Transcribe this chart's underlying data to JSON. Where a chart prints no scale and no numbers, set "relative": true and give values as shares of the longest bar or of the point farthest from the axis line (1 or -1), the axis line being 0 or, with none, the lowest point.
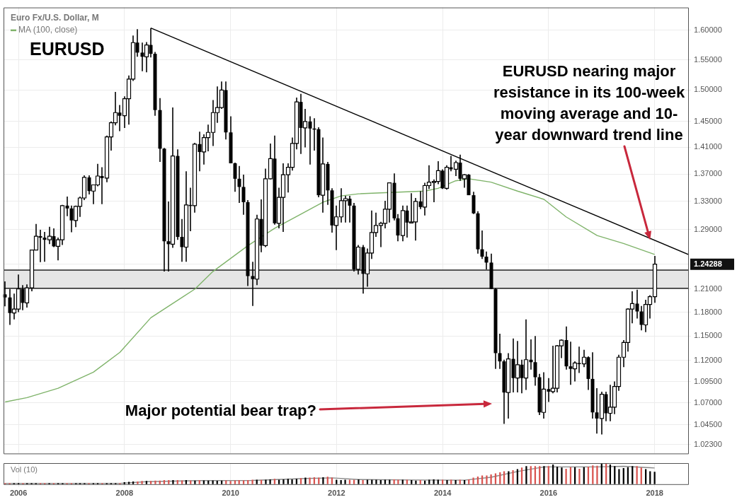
{
  "chart_data": [
    {
      "type": "candlestick",
      "title": "Euro Fx/U.S. Dollar, M",
      "log": true,
      "grid": true,
      "legend": "top left",
      "tick_labels": "y",
      "xlim": [
        "2005-09-20",
        "2018-08-20"
      ],
      "xticks": [
        "2006",
        "2008",
        "2010",
        "2012",
        "2014",
        "2016",
        "2018"
      ],
      "ylim": [
        1.013,
        1.64
      ],
      "yticks": [
        {
          "value": 1.023,
          "label": "1.02300"
        },
        {
          "value": 1.045,
          "label": "1.04500"
        },
        {
          "value": 1.07,
          "label": "1.07000"
        },
        {
          "value": 1.095,
          "label": "1.09500"
        },
        {
          "value": 1.12,
          "label": "1.12000"
        },
        {
          "value": 1.15,
          "label": "1.15000"
        },
        {
          "value": 1.18,
          "label": "1.18000"
        },
        {
          "value": 1.21,
          "label": "1.21000"
        },
        {
          "value": 1.24288,
          "label": "1.24288"
        },
        {
          "value": 1.29,
          "label": "1.29000"
        },
        {
          "value": 1.33,
          "label": "1.33000"
        },
        {
          "value": 1.37,
          "label": "1.37000"
        },
        {
          "value": 1.41,
          "label": "1.41000"
        },
        {
          "value": 1.45,
          "label": "1.45000"
        },
        {
          "value": 1.5,
          "label": "1.50000"
        },
        {
          "value": 1.55,
          "label": "1.55000"
        },
        {
          "value": 1.6,
          "label": "1.60000"
        }
      ],
      "x": [
        "2005-10",
        "2005-11",
        "2005-12",
        "2006-01",
        "2006-02",
        "2006-03",
        "2006-04",
        "2006-05",
        "2006-06",
        "2006-07",
        "2006-08",
        "2006-09",
        "2006-10",
        "2006-11",
        "2006-12",
        "2007-01",
        "2007-02",
        "2007-03",
        "2007-04",
        "2007-05",
        "2007-06",
        "2007-07",
        "2007-08",
        "2007-09",
        "2007-10",
        "2007-11",
        "2007-12",
        "2008-01",
        "2008-02",
        "2008-03",
        "2008-04",
        "2008-05",
        "2008-06",
        "2008-07",
        "2008-08",
        "2008-09",
        "2008-10",
        "2008-11",
        "2008-12",
        "2009-01",
        "2009-02",
        "2009-03",
        "2009-04",
        "2009-05",
        "2009-06",
        "2009-07",
        "2009-08",
        "2009-09",
        "2009-10",
        "2009-11",
        "2009-12",
        "2010-01",
        "2010-02",
        "2010-03",
        "2010-04",
        "2010-05",
        "2010-06",
        "2010-07",
        "2010-08",
        "2010-09",
        "2010-10",
        "2010-11",
        "2010-12",
        "2011-01",
        "2011-02",
        "2011-03",
        "2011-04",
        "2011-05",
        "2011-06",
        "2011-07",
        "2011-08",
        "2011-09",
        "2011-10",
        "2011-11",
        "2011-12",
        "2012-01",
        "2012-02",
        "2012-03",
        "2012-04",
        "2012-05",
        "2012-06",
        "2012-07",
        "2012-08",
        "2012-09",
        "2012-10",
        "2012-11",
        "2012-12",
        "2013-01",
        "2013-02",
        "2013-03",
        "2013-04",
        "2013-05",
        "2013-06",
        "2013-07",
        "2013-08",
        "2013-09",
        "2013-10",
        "2013-11",
        "2013-12",
        "2014-01",
        "2014-02",
        "2014-03",
        "2014-04",
        "2014-05",
        "2014-06",
        "2014-07",
        "2014-08",
        "2014-09",
        "2014-10",
        "2014-11",
        "2014-12",
        "2015-01",
        "2015-02",
        "2015-03",
        "2015-04",
        "2015-05",
        "2015-06",
        "2015-07",
        "2015-08",
        "2015-09",
        "2015-10",
        "2015-11",
        "2015-12",
        "2016-01",
        "2016-02",
        "2016-03",
        "2016-04",
        "2016-05",
        "2016-06",
        "2016-07",
        "2016-08",
        "2016-09",
        "2016-10",
        "2016-11",
        "2016-12",
        "2017-01",
        "2017-02",
        "2017-03",
        "2017-04",
        "2017-05",
        "2017-06",
        "2017-07",
        "2017-08",
        "2017-09",
        "2017-10",
        "2017-11",
        "2017-12",
        "2018-01"
      ],
      "ohlc": [
        [
          1.203,
          1.22,
          1.1875,
          1.199
        ],
        [
          1.199,
          1.21,
          1.164,
          1.179
        ],
        [
          1.179,
          1.204,
          1.171,
          1.184
        ],
        [
          1.184,
          1.229,
          1.18,
          1.21
        ],
        [
          1.21,
          1.215,
          1.1825,
          1.192
        ],
        [
          1.192,
          1.216,
          1.186,
          1.2115
        ],
        [
          1.2115,
          1.2625,
          1.207,
          1.262
        ],
        [
          1.262,
          1.298,
          1.262,
          1.281
        ],
        [
          1.281,
          1.29,
          1.2455,
          1.279
        ],
        [
          1.279,
          1.287,
          1.246,
          1.276
        ],
        [
          1.276,
          1.294,
          1.27,
          1.281
        ],
        [
          1.281,
          1.292,
          1.266,
          1.267
        ],
        [
          1.267,
          1.279,
          1.248,
          1.276
        ],
        [
          1.276,
          1.325,
          1.269,
          1.324
        ],
        [
          1.324,
          1.337,
          1.309,
          1.32
        ],
        [
          1.32,
          1.324,
          1.2865,
          1.303
        ],
        [
          1.303,
          1.324,
          1.2935,
          1.323
        ],
        [
          1.323,
          1.337,
          1.308,
          1.335
        ],
        [
          1.335,
          1.368,
          1.332,
          1.365
        ],
        [
          1.365,
          1.368,
          1.34,
          1.345
        ],
        [
          1.345,
          1.354,
          1.326,
          1.354
        ],
        [
          1.354,
          1.385,
          1.352,
          1.367
        ],
        [
          1.367,
          1.38,
          1.326,
          1.364
        ],
        [
          1.364,
          1.428,
          1.358,
          1.426
        ],
        [
          1.426,
          1.45,
          1.405,
          1.448
        ],
        [
          1.448,
          1.497,
          1.444,
          1.464
        ],
        [
          1.464,
          1.476,
          1.435,
          1.459
        ],
        [
          1.459,
          1.49,
          1.44,
          1.486
        ],
        [
          1.486,
          1.524,
          1.445,
          1.518
        ],
        [
          1.518,
          1.591,
          1.515,
          1.579
        ],
        [
          1.579,
          1.602,
          1.555,
          1.562
        ],
        [
          1.562,
          1.579,
          1.531,
          1.555
        ],
        [
          1.555,
          1.58,
          1.529,
          1.575
        ],
        [
          1.575,
          1.604,
          1.554,
          1.56
        ],
        [
          1.56,
          1.563,
          1.459,
          1.468
        ],
        [
          1.468,
          1.487,
          1.388,
          1.408
        ],
        [
          1.408,
          1.409,
          1.233,
          1.274
        ],
        [
          1.274,
          1.33,
          1.233,
          1.27
        ],
        [
          1.27,
          1.472,
          1.265,
          1.397
        ],
        [
          1.397,
          1.407,
          1.276,
          1.28
        ],
        [
          1.28,
          1.305,
          1.246,
          1.266
        ],
        [
          1.266,
          1.374,
          1.246,
          1.325
        ],
        [
          1.325,
          1.35,
          1.288,
          1.324
        ],
        [
          1.324,
          1.417,
          1.314,
          1.415
        ],
        [
          1.415,
          1.434,
          1.374,
          1.403
        ],
        [
          1.403,
          1.43,
          1.384,
          1.425
        ],
        [
          1.425,
          1.445,
          1.404,
          1.433
        ],
        [
          1.433,
          1.484,
          1.412,
          1.464
        ],
        [
          1.464,
          1.506,
          1.448,
          1.472
        ],
        [
          1.472,
          1.514,
          1.47,
          1.5
        ],
        [
          1.5,
          1.514,
          1.422,
          1.433
        ],
        [
          1.433,
          1.458,
          1.386,
          1.386
        ],
        [
          1.386,
          1.387,
          1.344,
          1.363
        ],
        [
          1.363,
          1.382,
          1.328,
          1.351
        ],
        [
          1.351,
          1.369,
          1.311,
          1.329
        ],
        [
          1.329,
          1.332,
          1.214,
          1.227
        ],
        [
          1.227,
          1.246,
          1.188,
          1.223
        ],
        [
          1.223,
          1.311,
          1.215,
          1.305
        ],
        [
          1.305,
          1.333,
          1.259,
          1.268
        ],
        [
          1.268,
          1.378,
          1.266,
          1.363
        ],
        [
          1.363,
          1.416,
          1.362,
          1.393
        ],
        [
          1.393,
          1.428,
          1.297,
          1.299
        ],
        [
          1.299,
          1.35,
          1.292,
          1.336
        ],
        [
          1.336,
          1.386,
          1.287,
          1.369
        ],
        [
          1.369,
          1.386,
          1.343,
          1.38
        ],
        [
          1.38,
          1.425,
          1.375,
          1.416
        ],
        [
          1.416,
          1.488,
          1.407,
          1.481
        ],
        [
          1.481,
          1.494,
          1.4,
          1.44
        ],
        [
          1.44,
          1.47,
          1.41,
          1.45
        ],
        [
          1.45,
          1.458,
          1.384,
          1.439
        ],
        [
          1.439,
          1.455,
          1.405,
          1.438
        ],
        [
          1.438,
          1.441,
          1.336,
          1.339
        ],
        [
          1.339,
          1.425,
          1.314,
          1.385
        ],
        [
          1.385,
          1.388,
          1.325,
          1.346
        ],
        [
          1.346,
          1.349,
          1.286,
          1.296
        ],
        [
          1.296,
          1.324,
          1.262,
          1.308
        ],
        [
          1.308,
          1.349,
          1.3,
          1.331
        ],
        [
          1.331,
          1.338,
          1.3,
          1.334
        ],
        [
          1.334,
          1.338,
          1.3,
          1.324
        ],
        [
          1.324,
          1.328,
          1.233,
          1.236
        ],
        [
          1.236,
          1.269,
          1.229,
          1.266
        ],
        [
          1.266,
          1.269,
          1.204,
          1.23
        ],
        [
          1.23,
          1.264,
          1.213,
          1.258
        ],
        [
          1.258,
          1.317,
          1.25,
          1.286
        ],
        [
          1.286,
          1.314,
          1.28,
          1.296
        ],
        [
          1.296,
          1.301,
          1.266,
          1.299
        ],
        [
          1.299,
          1.331,
          1.292,
          1.319
        ],
        [
          1.319,
          1.357,
          1.3,
          1.357
        ],
        [
          1.357,
          1.371,
          1.303,
          1.306
        ],
        [
          1.306,
          1.312,
          1.274,
          1.282
        ],
        [
          1.282,
          1.324,
          1.274,
          1.317
        ],
        [
          1.317,
          1.324,
          1.279,
          1.3
        ],
        [
          1.3,
          1.342,
          1.3,
          1.301
        ],
        [
          1.301,
          1.335,
          1.275,
          1.33
        ],
        [
          1.33,
          1.345,
          1.319,
          1.322
        ],
        [
          1.322,
          1.357,
          1.31,
          1.353
        ],
        [
          1.353,
          1.383,
          1.348,
          1.358
        ],
        [
          1.358,
          1.362,
          1.329,
          1.359
        ],
        [
          1.359,
          1.389,
          1.355,
          1.375
        ],
        [
          1.375,
          1.377,
          1.348,
          1.349
        ],
        [
          1.349,
          1.383,
          1.347,
          1.38
        ],
        [
          1.38,
          1.397,
          1.374,
          1.377
        ],
        [
          1.377,
          1.39,
          1.367,
          1.387
        ],
        [
          1.387,
          1.399,
          1.36,
          1.363
        ],
        [
          1.363,
          1.37,
          1.35,
          1.369
        ],
        [
          1.369,
          1.37,
          1.339,
          1.339
        ],
        [
          1.339,
          1.344,
          1.312,
          1.313
        ],
        [
          1.313,
          1.316,
          1.257,
          1.263
        ],
        [
          1.263,
          1.289,
          1.25,
          1.253
        ],
        [
          1.253,
          1.26,
          1.236,
          1.245
        ],
        [
          1.245,
          1.257,
          1.21,
          1.21
        ],
        [
          1.21,
          1.211,
          1.11,
          1.129
        ],
        [
          1.129,
          1.153,
          1.11,
          1.119
        ],
        [
          1.119,
          1.121,
          1.046,
          1.082
        ],
        [
          1.082,
          1.129,
          1.052,
          1.122
        ],
        [
          1.122,
          1.147,
          1.082,
          1.099
        ],
        [
          1.099,
          1.144,
          1.082,
          1.115
        ],
        [
          1.115,
          1.121,
          1.081,
          1.099
        ],
        [
          1.099,
          1.171,
          1.085,
          1.121
        ],
        [
          1.121,
          1.146,
          1.109,
          1.118
        ],
        [
          1.118,
          1.15,
          1.09,
          1.1
        ],
        [
          1.1,
          1.104,
          1.056,
          1.059
        ],
        [
          1.059,
          1.106,
          1.052,
          1.086
        ],
        [
          1.086,
          1.099,
          1.071,
          1.083
        ],
        [
          1.083,
          1.138,
          1.081,
          1.087
        ],
        [
          1.087,
          1.139,
          1.082,
          1.138
        ],
        [
          1.138,
          1.146,
          1.123,
          1.145
        ],
        [
          1.145,
          1.162,
          1.109,
          1.113
        ],
        [
          1.113,
          1.143,
          1.091,
          1.11
        ],
        [
          1.11,
          1.119,
          1.095,
          1.117
        ],
        [
          1.117,
          1.137,
          1.105,
          1.116
        ],
        [
          1.116,
          1.133,
          1.112,
          1.124
        ],
        [
          1.124,
          1.125,
          1.085,
          1.098
        ],
        [
          1.098,
          1.13,
          1.052,
          1.059
        ],
        [
          1.059,
          1.087,
          1.035,
          1.052
        ],
        [
          1.052,
          1.083,
          1.034,
          1.08
        ],
        [
          1.08,
          1.083,
          1.049,
          1.058
        ],
        [
          1.058,
          1.091,
          1.049,
          1.065
        ],
        [
          1.065,
          1.095,
          1.057,
          1.089
        ],
        [
          1.089,
          1.127,
          1.084,
          1.124
        ],
        [
          1.124,
          1.145,
          1.112,
          1.142
        ],
        [
          1.142,
          1.185,
          1.131,
          1.184
        ],
        [
          1.184,
          1.207,
          1.166,
          1.191
        ],
        [
          1.191,
          1.209,
          1.172,
          1.181
        ],
        [
          1.181,
          1.188,
          1.157,
          1.164
        ],
        [
          1.164,
          1.196,
          1.155,
          1.19
        ],
        [
          1.19,
          1.202,
          1.172,
          1.2
        ],
        [
          1.2,
          1.254,
          1.192,
          1.24288
        ]
      ],
      "series": [
        {
          "type": "line",
          "name": "MA (100, close)",
          "color": "#7fb36a",
          "x": [
            "2005-10",
            "2006-03",
            "2006-10",
            "2007-06",
            "2007-12",
            "2008-07",
            "2009-02",
            "2009-05",
            "2009-09",
            "2010-05",
            "2010-11",
            "2011-05",
            "2011-10",
            "2012-02",
            "2012-06",
            "2013-01",
            "2013-09",
            "2013-12",
            "2014-04",
            "2014-07",
            "2014-12",
            "2015-06",
            "2015-12",
            "2016-05",
            "2016-12",
            "2017-06",
            "2018-01"
          ],
          "values": [
            1.071,
            1.076,
            1.087,
            1.106,
            1.13,
            1.173,
            1.199,
            1.21,
            1.233,
            1.268,
            1.292,
            1.312,
            1.329,
            1.338,
            1.341,
            1.343,
            1.345,
            1.349,
            1.36,
            1.363,
            1.358,
            1.345,
            1.333,
            1.308,
            1.282,
            1.271,
            1.256
          ]
        },
        {
          "type": "line",
          "color": "#000000",
          "x": [
            "2008-07",
            "2018-08-20"
          ],
          "values": [
            1.604,
            1.256
          ]
        }
      ],
      "bands": [
        {
          "axis": "y",
          "from": 1.211,
          "to": 1.235,
          "color": "#e6e6e6"
        }
      ],
      "ref_lines": [
        {
          "axis": "y",
          "value": 1.235,
          "color": "#222222"
        },
        {
          "axis": "y",
          "value": 1.211,
          "color": "#222222"
        }
      ],
      "annotations": [
        "EURUSD",
        {
          "text": "EURUSD nearing major resistance in its 100-week moving average and 10-year downward trend line",
          "x": "2017-12",
          "y": 1.278
        },
        "Major potential bear trap?"
      ]
    },
    {
      "type": "bar",
      "title": "Vol (10)",
      "relative": true,
      "grid": "x",
      "xlim": [
        "2005-09-20",
        "2018-08-20"
      ],
      "xticks": [
        "2006",
        "2008",
        "2010",
        "2012",
        "2014",
        "2016",
        "2018"
      ],
      "x": [
        "2005-10",
        "2005-11",
        "2005-12",
        "2006-01",
        "2006-02",
        "2006-03",
        "2006-04",
        "2006-05",
        "2006-06",
        "2006-07",
        "2006-08",
        "2006-09",
        "2006-10",
        "2006-11",
        "2006-12",
        "2007-01",
        "2007-02",
        "2007-03",
        "2007-04",
        "2007-05",
        "2007-06",
        "2007-07",
        "2007-08",
        "2007-09",
        "2007-10",
        "2007-11",
        "2007-12",
        "2008-01",
        "2008-02",
        "2008-03",
        "2008-04",
        "2008-05",
        "2008-06",
        "2008-07",
        "2008-08",
        "2008-09",
        "2008-10",
        "2008-11",
        "2008-12",
        "2009-01",
        "2009-02",
        "2009-03",
        "2009-04",
        "2009-05",
        "2009-06",
        "2009-07",
        "2009-08",
        "2009-09",
        "2009-10",
        "2009-11",
        "2009-12",
        "2010-01",
        "2010-02",
        "2010-03",
        "2010-04",
        "2010-05",
        "2010-06",
        "2010-07",
        "2010-08",
        "2010-09",
        "2010-10",
        "2010-11",
        "2010-12",
        "2011-01",
        "2011-02",
        "2011-03",
        "2011-04",
        "2011-05",
        "2011-06",
        "2011-07",
        "2011-08",
        "2011-09",
        "2011-10",
        "2011-11",
        "2011-12",
        "2012-01",
        "2012-02",
        "2012-03",
        "2012-04",
        "2012-05",
        "2012-06",
        "2012-07",
        "2012-08",
        "2012-09",
        "2012-10",
        "2012-11",
        "2012-12",
        "2013-01",
        "2013-02",
        "2013-03",
        "2013-04",
        "2013-05",
        "2013-06",
        "2013-07",
        "2013-08",
        "2013-09",
        "2013-10",
        "2013-11",
        "2013-12",
        "2014-01",
        "2014-02",
        "2014-03",
        "2014-04",
        "2014-05",
        "2014-06",
        "2014-07",
        "2014-08",
        "2014-09",
        "2014-10",
        "2014-11",
        "2014-12",
        "2015-01",
        "2015-02",
        "2015-03",
        "2015-04",
        "2015-05",
        "2015-06",
        "2015-07",
        "2015-08",
        "2015-09",
        "2015-10",
        "2015-11",
        "2015-12",
        "2016-01",
        "2016-02",
        "2016-03",
        "2016-04",
        "2016-05",
        "2016-06",
        "2016-07",
        "2016-08",
        "2016-09",
        "2016-10",
        "2016-11",
        "2016-12",
        "2017-01",
        "2017-02",
        "2017-03",
        "2017-04",
        "2017-05",
        "2017-06",
        "2017-07",
        "2017-08",
        "2017-09",
        "2017-10",
        "2017-11",
        "2017-12",
        "2018-01"
      ],
      "series": [
        {
          "type": "bar",
          "values": [
            0.04,
            0.04,
            0.04,
            0.04,
            0.04,
            0.04,
            0.04,
            0.04,
            0.04,
            0.04,
            0.04,
            0.04,
            0.04,
            0.04,
            0.04,
            0.04,
            0.04,
            0.04,
            0.04,
            0.04,
            0.04,
            0.04,
            0.04,
            0.04,
            0.04,
            0.04,
            0.04,
            0.08,
            0.1,
            0.12,
            0.12,
            0.14,
            0.14,
            0.14,
            0.16,
            0.16,
            0.18,
            0.18,
            0.18,
            0.18,
            0.17,
            0.18,
            0.17,
            0.16,
            0.18,
            0.17,
            0.16,
            0.17,
            0.15,
            0.16,
            0.17,
            0.14,
            0.17,
            0.18,
            0.17,
            0.18,
            0.2,
            0.2,
            0.19,
            0.2,
            0.22,
            0.24,
            0.2,
            0.22,
            0.24,
            0.22,
            0.24,
            0.28,
            0.3,
            0.3,
            0.32,
            0.3,
            0.32,
            0.34,
            0.3,
            0.2,
            0.18,
            0.2,
            0.2,
            0.2,
            0.22,
            0.18,
            0.2,
            0.2,
            0.2,
            0.18,
            0.2,
            0.2,
            0.22,
            0.2,
            0.2,
            0.2,
            0.18,
            0.16,
            0.18,
            0.16,
            0.2,
            0.22,
            0.2,
            0.2,
            0.18,
            0.2,
            0.18,
            0.2,
            0.18,
            0.22,
            0.3,
            0.35,
            0.4,
            0.4,
            0.45,
            0.5,
            0.55,
            0.6,
            0.6,
            0.65,
            0.7,
            0.78,
            0.85,
            0.85,
            0.85,
            0.85,
            0.85,
            0.85,
            0.92,
            0.82,
            0.78,
            0.72,
            0.8,
            0.8,
            0.72,
            0.8,
            0.82,
            0.88,
            0.86,
            1,
            0.96,
            0.92,
            0.85,
            0.7,
            0.75,
            0.8,
            0.85,
            0.85,
            0.78,
            0.7,
            0.6,
            0.58
          ],
          "colors": [
            "#d9534f",
            "#d9534f",
            "#000000",
            "#000000",
            "#d9534f",
            "#000000",
            "#000000",
            "#000000",
            "#d9534f",
            "#d9534f",
            "#000000",
            "#d9534f",
            "#000000",
            "#000000",
            "#d9534f",
            "#d9534f",
            "#000000",
            "#000000",
            "#000000",
            "#d9534f",
            "#000000",
            "#000000",
            "#d9534f",
            "#000000",
            "#000000",
            "#000000",
            "#d9534f",
            "#000000",
            "#000000",
            "#000000",
            "#d9534f",
            "#d9534f",
            "#000000",
            "#d9534f",
            "#d9534f",
            "#d9534f",
            "#d9534f",
            "#d9534f",
            "#000000",
            "#d9534f",
            "#d9534f",
            "#000000",
            "#d9534f",
            "#000000",
            "#d9534f",
            "#000000",
            "#000000",
            "#000000",
            "#000000",
            "#000000",
            "#d9534f",
            "#d9534f",
            "#d9534f",
            "#d9534f",
            "#d9534f",
            "#d9534f",
            "#d9534f",
            "#000000",
            "#d9534f",
            "#000000",
            "#000000",
            "#d9534f",
            "#000000",
            "#000000",
            "#000000",
            "#000000",
            "#000000",
            "#d9534f",
            "#000000",
            "#d9534f",
            "#d9534f",
            "#d9534f",
            "#000000",
            "#d9534f",
            "#d9534f",
            "#000000",
            "#000000",
            "#000000",
            "#d9534f",
            "#d9534f",
            "#000000",
            "#d9534f",
            "#000000",
            "#000000",
            "#000000",
            "#000000",
            "#000000",
            "#000000",
            "#d9534f",
            "#d9534f",
            "#000000",
            "#d9534f",
            "#000000",
            "#000000",
            "#d9534f",
            "#000000",
            "#000000",
            "#000000",
            "#000000",
            "#d9534f",
            "#000000",
            "#d9534f",
            "#000000",
            "#d9534f",
            "#000000",
            "#d9534f",
            "#d9534f",
            "#d9534f",
            "#d9534f",
            "#d9534f",
            "#d9534f",
            "#d9534f",
            "#d9534f",
            "#d9534f",
            "#000000",
            "#d9534f",
            "#000000",
            "#d9534f",
            "#000000",
            "#d9534f",
            "#d9534f",
            "#d9534f",
            "#000000",
            "#d9534f",
            "#000000",
            "#000000",
            "#000000",
            "#d9534f",
            "#d9534f",
            "#000000",
            "#d9534f",
            "#000000",
            "#d9534f",
            "#d9534f",
            "#d9534f",
            "#000000",
            "#d9534f",
            "#000000",
            "#000000",
            "#000000",
            "#000000",
            "#000000",
            "#000000",
            "#d9534f",
            "#d9534f",
            "#000000",
            "#000000",
            "#000000"
          ]
        },
        {
          "type": "line",
          "color": "#888888",
          "x": [
            "2005-10",
            "2007-12",
            "2008-06",
            "2009-06",
            "2010-06",
            "2011-06",
            "2011-12",
            "2012-06",
            "2013-06",
            "2014-06",
            "2014-12",
            "2015-06",
            "2015-12",
            "2016-06",
            "2016-12",
            "2017-06",
            "2017-12",
            "2018-01"
          ],
          "values": [
            0.04,
            0.04,
            0.12,
            0.17,
            0.18,
            0.27,
            0.3,
            0.22,
            0.2,
            0.19,
            0.33,
            0.6,
            0.82,
            0.82,
            0.82,
            0.85,
            0.78,
            0.77
          ]
        }
      ]
    }
  ]
}
